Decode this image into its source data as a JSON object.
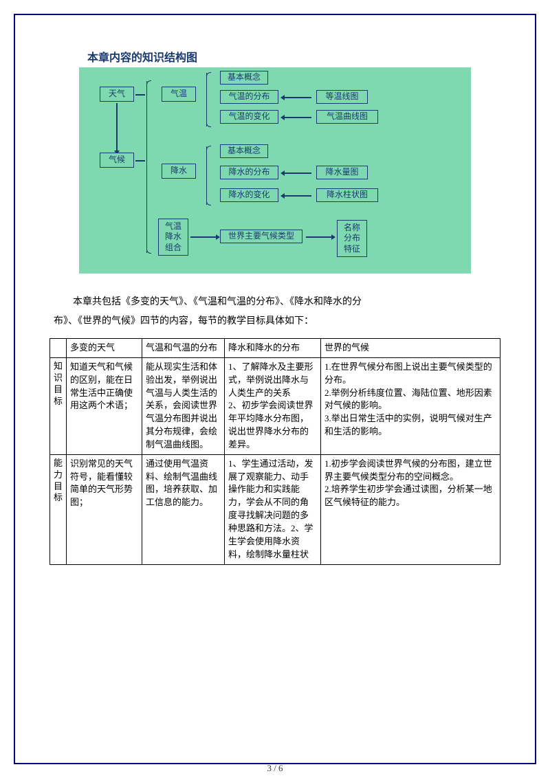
{
  "diagram": {
    "title": "本章内容的知识结构图",
    "bg_color": "#7fd9b0",
    "text_color": "#1a3a6e",
    "nodes": {
      "tianqi": "天气",
      "qihou": "气候",
      "qiwen": "气温",
      "jiangshui": "降水",
      "jiben1": "基本概念",
      "qiwenfb": "气温的分布",
      "qiwenbh": "气温的变化",
      "dwxt": "等温线图",
      "qwqxt": "气温曲线图",
      "jiben2": "基本概念",
      "jsfb": "降水的分布",
      "jsbh": "降水的变化",
      "jslt": "降水量图",
      "jszzt": "降水柱状图",
      "zuhe": "气温\n降水\n组合",
      "sjtype": "世界主要气候类型",
      "mftz": "名称\n分布\n特征"
    }
  },
  "intro": {
    "line1": "本章共包括《多变的天气》、《气温和气温的分布》、《降水和降水的分",
    "line2": "布》、《世界的气候》四节的内容，每节的教学目标具体如下："
  },
  "table": {
    "headers": [
      "",
      "多变的天气",
      "气温和气温的分布",
      "降水和降水的分布",
      "世界的气候"
    ],
    "rows": [
      {
        "label": "知识目标",
        "c1": "知道天气和气候的区别，能在日常生活中正确使用这两个术语；",
        "c2": "能从现实生活和体验出发，举例说出气温与人类生活的关系，会阅读世界气温分布图并说出其分布规律，会绘制气温曲线图。",
        "c3": "1、了解降水及主要形式，举例说出降水与人类生产的关系\n2、初步学会阅读世界年平均降水分布图，说出世界降水分布的差异。",
        "c4": "1.在世界气候分布图上说出主要气候类型的分布。\n2.举例分析纬度位置、海陆位置、地形因素对气候的影响。\n3.举出日常生活中的实例，说明气候对生产和生活的影响。"
      },
      {
        "label": "能力目标",
        "c1": "识别常见的天气符号，能看懂较简单的天气形势图；",
        "c2": "通过使用气温资料、绘制气温曲线图，培养获取、加工信息的能力。",
        "c3": "1、学生通过活动，发展了观察能力、动手操作能力和实践能力，学会从不同的角度寻找解决问题的多种思路和方法。2、学生学会使用降水资料，绘制降水量柱状",
        "c4": "1.初步学会阅读世界气候的分布图，建立世界主要气候类型分布的空间概念。\n2.培养学生初步学会通过读图，分析某一地区气候特征的能力。"
      }
    ]
  },
  "page_number": "3 / 6"
}
